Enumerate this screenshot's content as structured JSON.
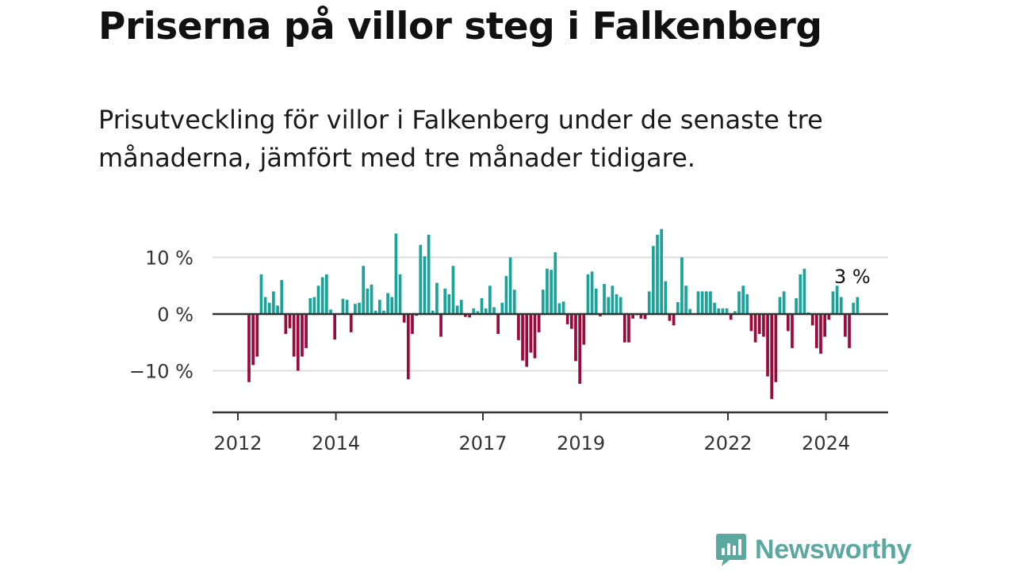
{
  "title": "Priserna på villor steg i Falkenberg",
  "subtitle": "Prisutveckling för villor i Falkenberg under de senaste tre månaderna, jämfört med tre månader tidigare.",
  "colors": {
    "positive": "#1aa39a",
    "negative": "#9b0a3a",
    "gridline": "#dddddd",
    "axis": "#333333",
    "logo": "#5aa8a0"
  },
  "logo": {
    "text": "Newsworthy",
    "icon": "bar-chart-speech-bubble-icon"
  },
  "chart_data": {
    "type": "bar",
    "title": "",
    "xlabel": "",
    "ylabel": "",
    "ylim": [
      -17,
      13.5
    ],
    "y_ticks": [
      {
        "value": 10,
        "label": "10 %"
      },
      {
        "value": 0,
        "label": "0 %"
      },
      {
        "value": -10,
        "label": "−10 %"
      }
    ],
    "x_ticks": [
      {
        "value": "2012-01",
        "label": "2012"
      },
      {
        "value": "2014-01",
        "label": "2014"
      },
      {
        "value": "2017-01",
        "label": "2017"
      },
      {
        "value": "2019-01",
        "label": "2019"
      },
      {
        "value": "2022-01",
        "label": "2022"
      },
      {
        "value": "2024-01",
        "label": "2024"
      }
    ],
    "grid": true,
    "annotation": {
      "label": "3 %",
      "x": "2024-07",
      "value": 3
    },
    "series": [
      {
        "start": "2012-01",
        "values": [
          0,
          -12,
          -9,
          -7.5,
          7,
          3,
          2,
          4,
          1.5,
          6,
          -3.5,
          -2.5,
          -7.5,
          -10,
          -7.5,
          -6,
          2.8,
          3,
          5,
          6.5,
          7,
          0.8,
          -4.5,
          0,
          2.7,
          2.5,
          -3.2,
          1.8,
          2,
          8.5,
          4.5,
          5.2,
          0.6,
          2.5,
          0.6,
          3.7,
          3,
          14.2,
          7,
          -1.5,
          -11.5,
          -3.5,
          -0.3,
          12.2,
          10.2,
          14,
          0.6,
          5.5,
          -4,
          4.5,
          3.5,
          8.5,
          1.5,
          2.5,
          -0.5,
          -0.6,
          1,
          0.5,
          2.8,
          1,
          5,
          1.2,
          -3.5,
          2,
          6.7,
          10,
          4.3,
          -4.6,
          -8.2,
          -9.3,
          -6.8,
          -7.8,
          -3.2,
          4.3,
          8,
          7.8,
          10.9,
          1.9,
          2.2,
          -1.8,
          -2.6,
          -8.3,
          -12.3,
          -5.4,
          7,
          7.5,
          4.5,
          -0.4,
          5.3,
          3,
          5,
          3.5,
          3,
          -5,
          -5,
          -0.8,
          -0.2,
          -0.8,
          -0.9,
          4,
          12,
          14,
          15,
          5.8,
          -1.2,
          -2,
          2.1,
          10,
          5,
          0.9,
          0,
          4,
          4,
          4,
          4,
          2,
          1,
          1,
          1,
          -1,
          0.5,
          4,
          5,
          3.5,
          -3,
          -5,
          -3.5,
          -4,
          -11,
          -15,
          -12,
          3,
          4,
          -3,
          -6,
          2.8,
          7,
          8,
          0.3,
          -2,
          -6,
          -7,
          -4,
          -1,
          4,
          5,
          3,
          -4,
          -6,
          2,
          3
        ]
      }
    ]
  }
}
